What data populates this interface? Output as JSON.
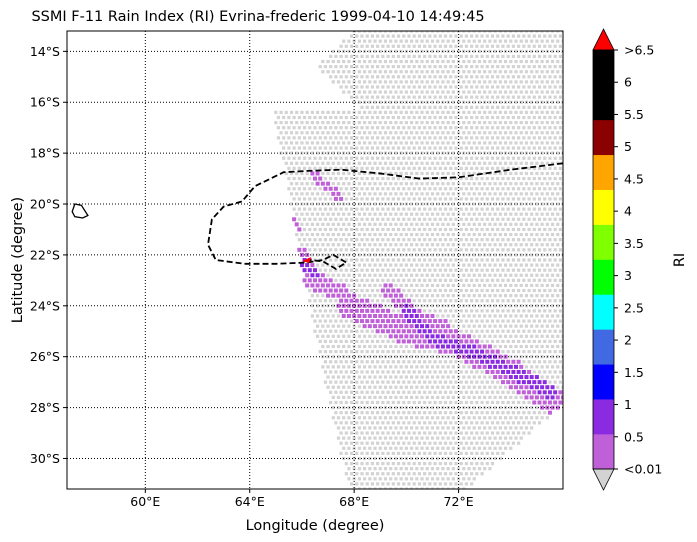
{
  "title": "SSMI F-11 Rain Index (RI) Evrina-frederic 1999-04-10 14:49:45",
  "map": {
    "lon_range": [
      57,
      76
    ],
    "lat_range": [
      -31.2,
      -13.2
    ],
    "grid": "dotted",
    "x_axis": {
      "label": "Longitude (degree)",
      "ticks": [
        {
          "value": 60,
          "label": "60°E"
        },
        {
          "value": 64,
          "label": "64°E"
        },
        {
          "value": 68,
          "label": "68°E"
        },
        {
          "value": 72,
          "label": "72°E"
        }
      ]
    },
    "y_axis": {
      "label": "Latitude (degree)",
      "ticks": [
        {
          "value": -14,
          "label": "14°S"
        },
        {
          "value": -16,
          "label": "16°S"
        },
        {
          "value": -18,
          "label": "18°S"
        },
        {
          "value": -20,
          "label": "20°S"
        },
        {
          "value": -22,
          "label": "22°S"
        },
        {
          "value": -24,
          "label": "24°S"
        },
        {
          "value": -26,
          "label": "26°S"
        },
        {
          "value": -28,
          "label": "28°S"
        },
        {
          "value": -30,
          "label": "30°S"
        }
      ]
    },
    "swath_color": "#d3d3d3",
    "track_color": "#000000",
    "storm_marker_color": "#ff0000",
    "storm_position": {
      "lon": 66.2,
      "lat": -22.2
    },
    "storm_track": [
      [
        76,
        -18.4
      ],
      [
        74,
        -18.65
      ],
      [
        72,
        -18.95
      ],
      [
        70.5,
        -19.0
      ],
      [
        69,
        -18.8
      ],
      [
        67.5,
        -18.65
      ],
      [
        66.2,
        -18.7
      ],
      [
        65.3,
        -18.75
      ],
      [
        64.2,
        -19.3
      ],
      [
        63.7,
        -19.9
      ],
      [
        63.0,
        -20.1
      ],
      [
        62.55,
        -20.6
      ],
      [
        62.4,
        -21.6
      ],
      [
        62.7,
        -22.2
      ],
      [
        63.8,
        -22.35
      ],
      [
        65.0,
        -22.35
      ],
      [
        66.2,
        -22.3
      ],
      [
        66.8,
        -22.2
      ],
      [
        67.2,
        -22.0
      ],
      [
        67.7,
        -22.3
      ],
      [
        67.3,
        -22.55
      ],
      [
        66.8,
        -22.25
      ],
      [
        66.3,
        -22.2
      ],
      [
        66.2,
        -22.2
      ]
    ],
    "island_outline": [
      [
        57.3,
        -20.0
      ],
      [
        57.55,
        -20.05
      ],
      [
        57.8,
        -20.45
      ],
      [
        57.6,
        -20.55
      ],
      [
        57.3,
        -20.5
      ],
      [
        57.2,
        -20.3
      ],
      [
        57.3,
        -20.0
      ]
    ],
    "rain_bands": [
      {
        "name": "band-north",
        "points": [
          [
            66.4,
            -18.8
          ],
          [
            67.5,
            -19.8
          ]
        ],
        "width": 0.35,
        "level": 1
      },
      {
        "name": "band-west",
        "points": [
          [
            65.4,
            -20.3
          ],
          [
            65.9,
            -21.0
          ]
        ],
        "width": 0.35,
        "level": 1
      },
      {
        "name": "band-core",
        "points": [
          [
            66.0,
            -22.0
          ],
          [
            66.4,
            -23.0
          ],
          [
            67.5,
            -23.5
          ]
        ],
        "width": 0.7,
        "level": 1
      },
      {
        "name": "band-core-heavy",
        "points": [
          [
            65.9,
            -22.2
          ],
          [
            66.5,
            -22.8
          ]
        ],
        "width": 0.35,
        "level": 2
      },
      {
        "name": "band-mid",
        "points": [
          [
            69.3,
            -23.4
          ],
          [
            70.5,
            -24.5
          ],
          [
            71.4,
            -24.8
          ]
        ],
        "width": 0.55,
        "level": 1
      },
      {
        "name": "band-main",
        "points": [
          [
            67.8,
            -24.0
          ],
          [
            70.0,
            -25.0
          ],
          [
            72.0,
            -25.5
          ],
          [
            74.0,
            -26.6
          ],
          [
            76.0,
            -28.0
          ]
        ],
        "width": 1.0,
        "level": 1
      },
      {
        "name": "band-main-heavy",
        "points": [
          [
            70.0,
            -24.2
          ],
          [
            71.0,
            -25.3
          ],
          [
            72.5,
            -25.8
          ],
          [
            74.0,
            -26.5
          ],
          [
            75.5,
            -27.3
          ]
        ],
        "width": 0.45,
        "level": 2
      },
      {
        "name": "band-main-core",
        "points": [
          [
            70.4,
            -24.6
          ],
          [
            71.0,
            -25.2
          ],
          [
            74.2,
            -26.8
          ],
          [
            75.6,
            -27.6
          ]
        ],
        "width": 0.25,
        "level": 3
      }
    ]
  },
  "colorbar": {
    "label": "RI",
    "extend_low_color": "#d3d3d3",
    "extend_high_color": "#ff0000",
    "tick_labels": [
      "<0.01",
      "0.5",
      "1",
      "1.5",
      "2",
      "2.5",
      "3",
      "3.5",
      "4",
      "4.5",
      "5",
      "5.5",
      "6",
      ">6.5"
    ],
    "colors": [
      "#c060d8",
      "#8a2be2",
      "#0000ff",
      "#4169e1",
      "#00ffff",
      "#00ff00",
      "#7fff00",
      "#ffff00",
      "#ffa500",
      "#8b0000",
      "#000000",
      "#000000"
    ]
  }
}
